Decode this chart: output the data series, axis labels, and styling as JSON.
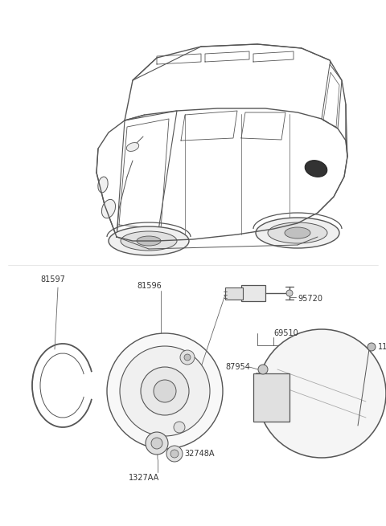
{
  "bg_color": "#ffffff",
  "line_color": "#555555",
  "text_color": "#333333",
  "fig_w": 4.8,
  "fig_h": 6.55,
  "dpi": 100
}
